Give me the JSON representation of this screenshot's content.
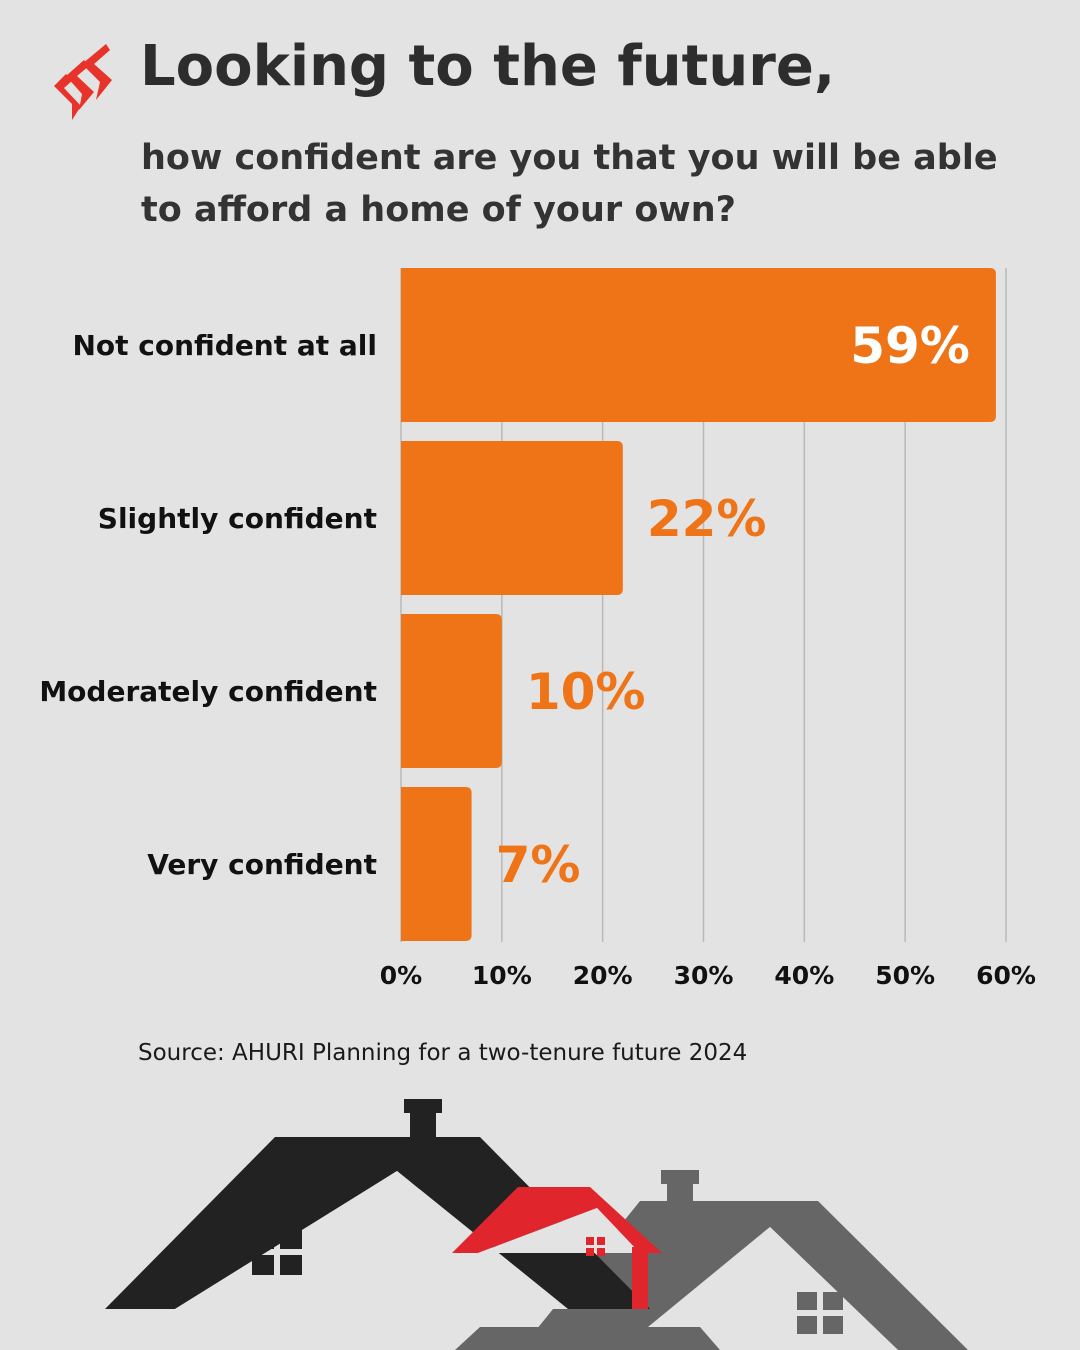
{
  "header": {
    "title": "Looking to the future,",
    "subtitle": "how confident are you that you will be able to afford a home of your own?"
  },
  "colors": {
    "bar": "#ee7417",
    "label_inside": "#ffffff",
    "label_outside": "#ee7417",
    "logo": "#e8332a",
    "house_dark": "#222222",
    "house_red": "#e0262c",
    "house_grey": "#666666"
  },
  "chart_data": {
    "type": "bar",
    "orientation": "horizontal",
    "categories": [
      "Not confident at all",
      "Slightly confident",
      "Moderately confident",
      "Very confident"
    ],
    "values": [
      59,
      22,
      10,
      7
    ],
    "value_labels": [
      "59%",
      "22%",
      "10%",
      "7%"
    ],
    "xlim": [
      0,
      60
    ],
    "xticks": [
      0,
      10,
      20,
      30,
      40,
      50,
      60
    ],
    "xtick_labels": [
      "0%",
      "10%",
      "20%",
      "30%",
      "40%",
      "50%",
      "60%"
    ],
    "grid": "vertical",
    "legend": "none"
  },
  "footer": {
    "source": "Source: AHURI Planning for a two-tenure future 2024"
  },
  "decorations": {
    "logo_icon": "sbs-logo-icon",
    "illustration_icon": "houses-illustration-icon"
  }
}
